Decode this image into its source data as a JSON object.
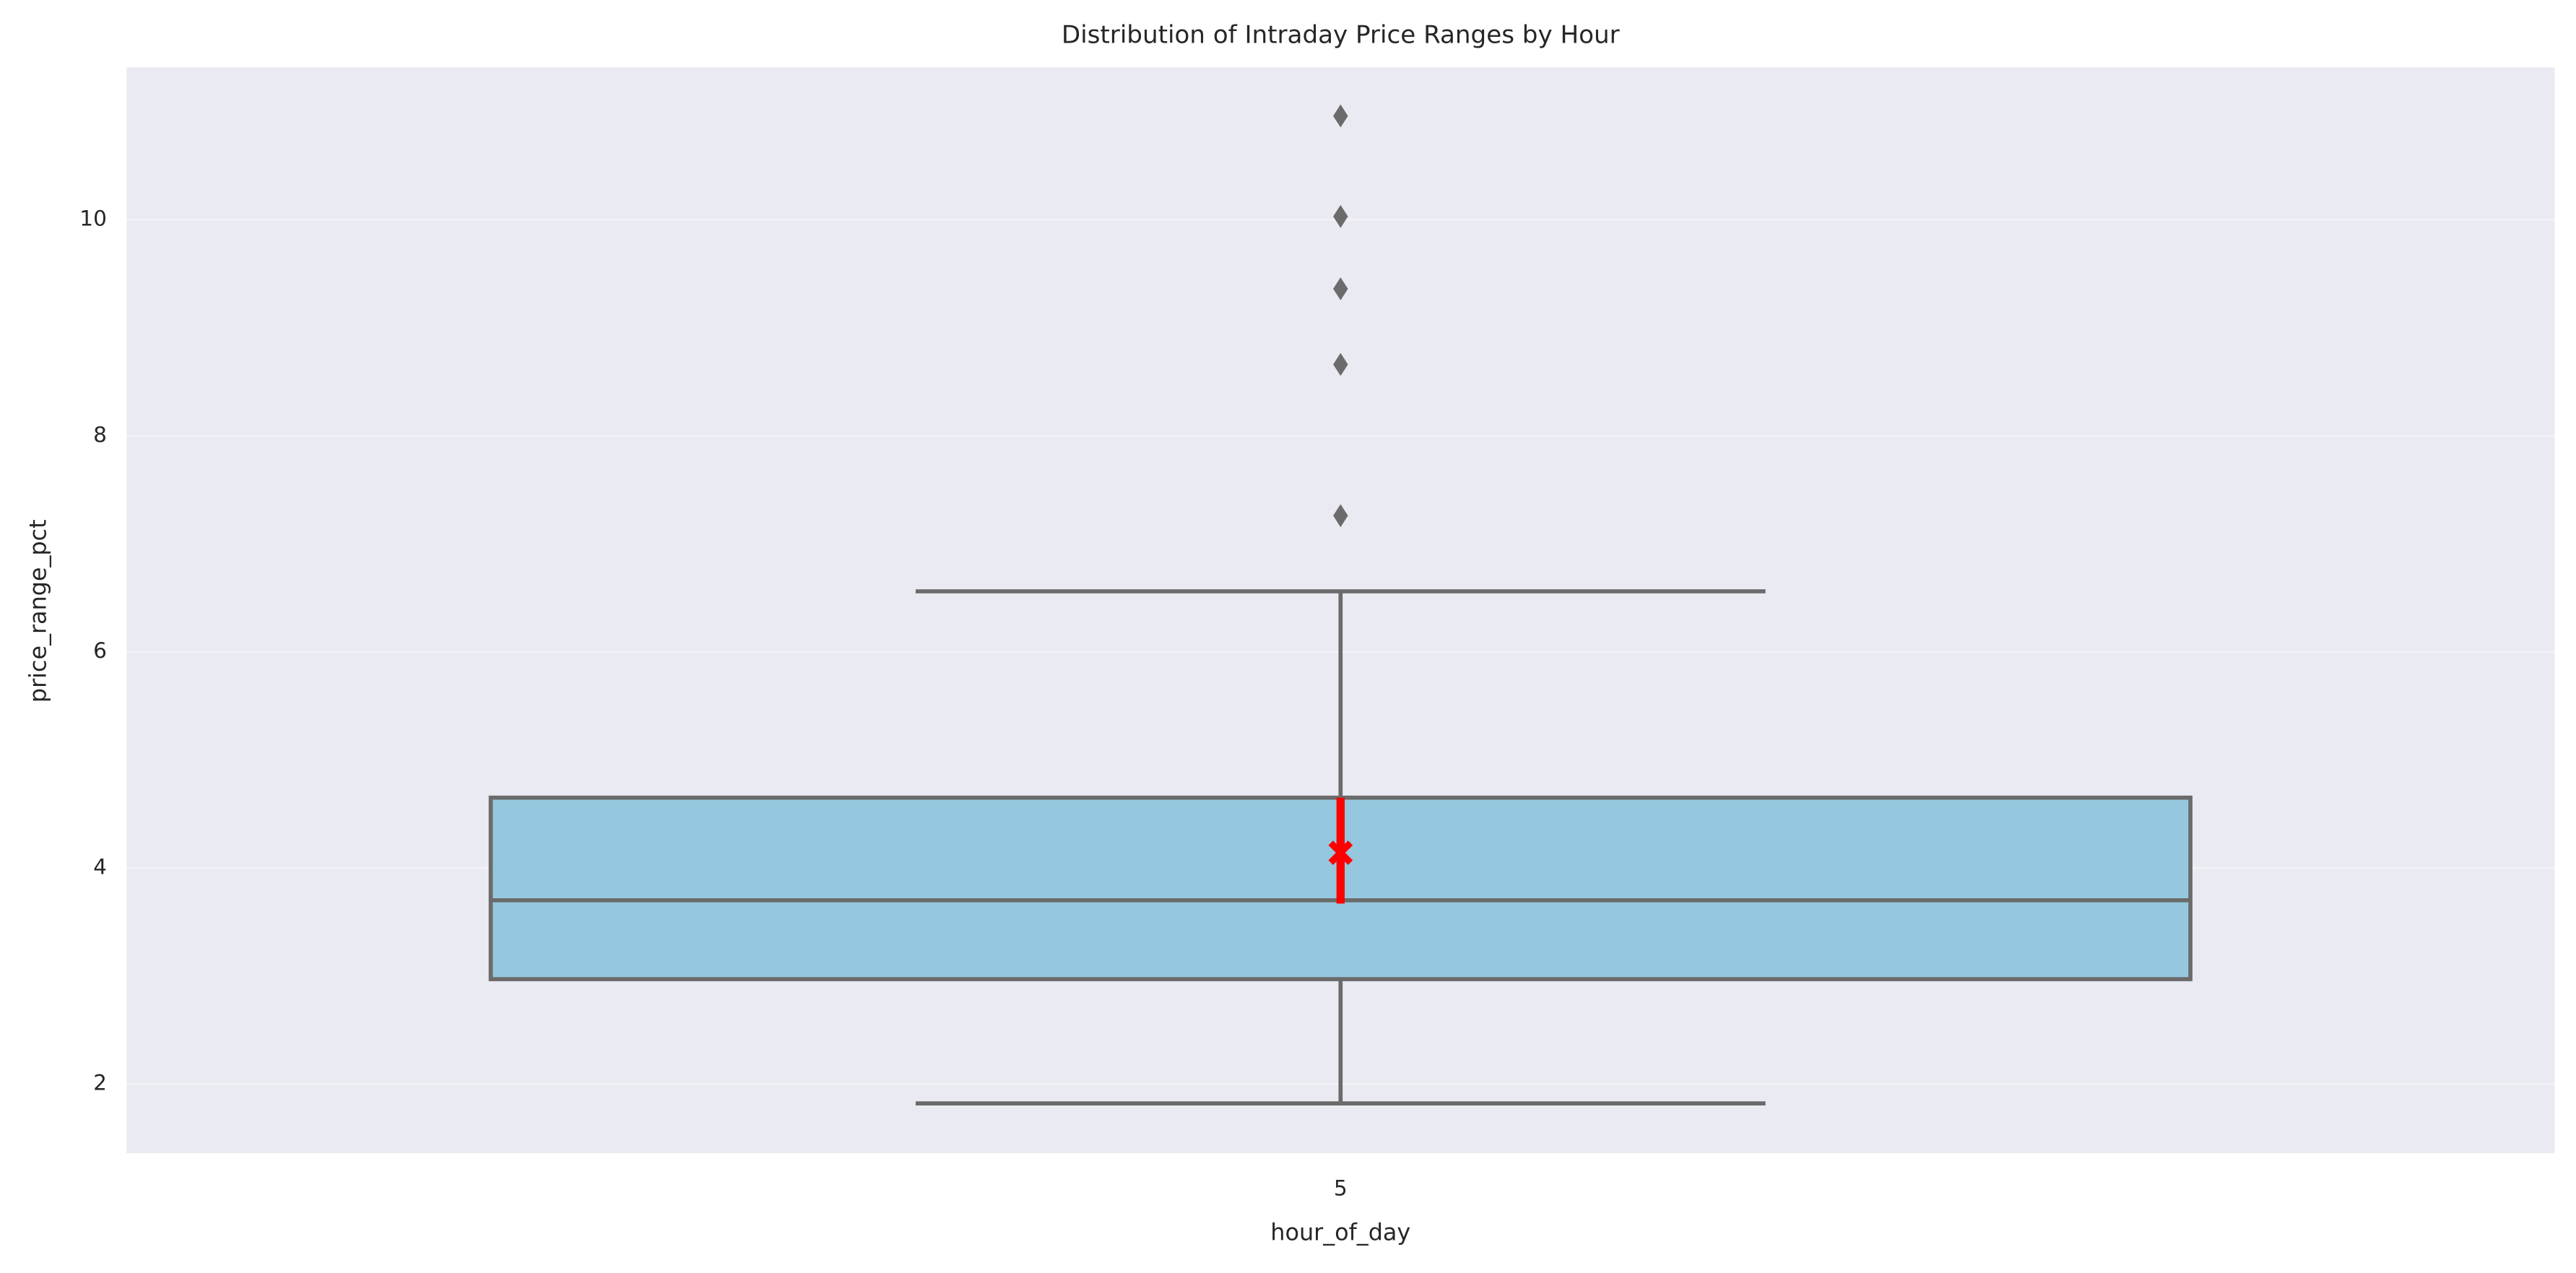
{
  "chart_data": {
    "type": "box",
    "title": "Distribution of Intraday Price Ranges by Hour",
    "xlabel": "hour_of_day",
    "ylabel": "price_range_pct",
    "categories": [
      "5"
    ],
    "boxes": [
      {
        "whislo": 1.82,
        "q1": 2.97,
        "med": 3.7,
        "q3": 4.65,
        "whishi": 6.56,
        "fliers": [
          7.26,
          8.66,
          9.36,
          10.03,
          10.96
        ],
        "mean": 4.14,
        "mean_ci": [
          3.67,
          4.65
        ]
      }
    ],
    "color": "#95c8de",
    "line_color": "#6b6b6b",
    "mean_color": "#ff0000",
    "ylim": [
      1.36,
      11.41
    ],
    "yticks": [
      2,
      4,
      6,
      8,
      10
    ],
    "grid": true
  }
}
